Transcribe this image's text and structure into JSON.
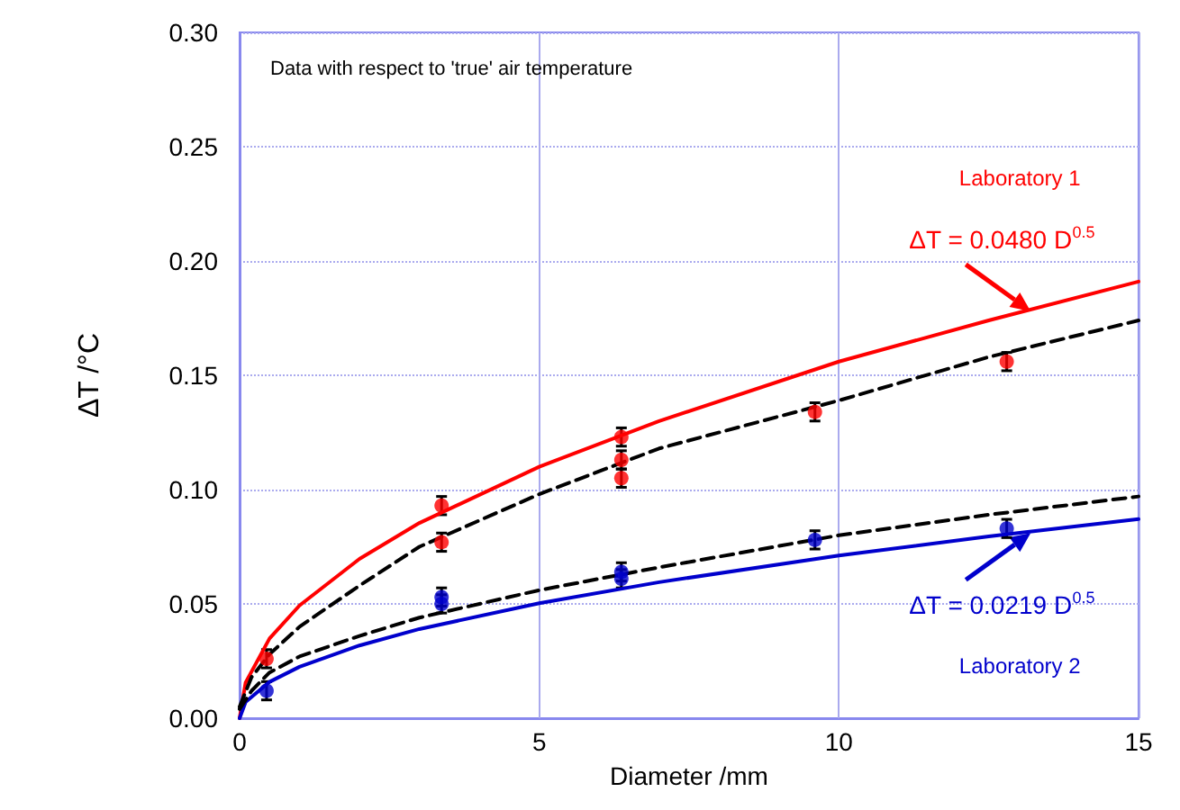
{
  "chart_data": {
    "type": "scatter",
    "title": "Data with respect to 'true' air temperature",
    "xlabel": "Diameter /mm",
    "ylabel": "ΔT /°C",
    "xlim": [
      0,
      15
    ],
    "xticks": [
      0,
      5,
      10,
      15
    ],
    "ylim": [
      0,
      0.3
    ],
    "yticks": [
      {
        "value": 0,
        "label": "0.00"
      },
      {
        "value": 0.05,
        "label": "0.05"
      },
      {
        "value": 0.1,
        "label": "0.10"
      },
      {
        "value": 0.15,
        "label": "0.15"
      },
      {
        "value": 0.2,
        "label": "0.20"
      },
      {
        "value": 0.25,
        "label": "0.25"
      },
      {
        "value": 0.3,
        "label": "0.30"
      }
    ],
    "grid": true,
    "marker": "circle",
    "series": [
      {
        "color": "#ff0000",
        "x": [
          0.45,
          3.37,
          3.37,
          6.37,
          6.37,
          6.37,
          9.6,
          12.8
        ],
        "values": [
          0.026,
          0.093,
          0.077,
          0.123,
          0.113,
          0.105,
          0.134,
          0.156
        ],
        "errors": [
          0.004,
          0.004,
          0.004,
          0.004,
          0.004,
          0.004,
          0.004,
          0.004
        ]
      },
      {
        "color": "#0000cc",
        "x": [
          0.45,
          3.37,
          3.37,
          6.37,
          6.37,
          9.6,
          12.8
        ],
        "values": [
          0.012,
          0.053,
          0.05,
          0.064,
          0.061,
          0.078,
          0.083
        ],
        "errors": [
          0.004,
          0.004,
          0.004,
          0.004,
          0.004,
          0.004,
          0.004
        ]
      },
      {
        "type": "line",
        "name": "Laboratory 1",
        "color": "#ff0000",
        "line_style": "solid",
        "marker": "none",
        "x": [
          0,
          0.1,
          0.5,
          1,
          2,
          3,
          5,
          7,
          10,
          12.5,
          15
        ],
        "values": [
          0,
          0.0156,
          0.0349,
          0.0493,
          0.0697,
          0.0854,
          0.11,
          0.13,
          0.156,
          0.174,
          0.191
        ]
      },
      {
        "type": "line",
        "name": "Laboratory 2",
        "color": "#0000cc",
        "line_style": "solid",
        "marker": "none",
        "x": [
          0,
          0.1,
          0.5,
          1,
          2,
          3,
          5,
          7,
          10,
          12.5,
          15
        ],
        "values": [
          0,
          0.0071,
          0.0159,
          0.0225,
          0.0318,
          0.039,
          0.0503,
          0.0595,
          0.0712,
          0.0795,
          0.0871
        ]
      },
      {
        "type": "line",
        "color": "#000000",
        "line_style": "dashed",
        "marker": "none",
        "x": [
          0,
          0.2,
          0.5,
          1,
          2,
          3,
          5,
          7,
          10,
          12.5,
          15
        ],
        "values": [
          0.005,
          0.018,
          0.028,
          0.04,
          0.058,
          0.075,
          0.098,
          0.118,
          0.139,
          0.158,
          0.174
        ]
      },
      {
        "type": "line",
        "color": "#000000",
        "line_style": "dashed",
        "marker": "none",
        "x": [
          0,
          0.2,
          0.5,
          1,
          2,
          3,
          5,
          7,
          10,
          12.5,
          15
        ],
        "values": [
          0.004,
          0.012,
          0.02,
          0.027,
          0.036,
          0.044,
          0.056,
          0.066,
          0.08,
          0.089,
          0.097
        ]
      }
    ],
    "annotations": [
      {
        "text": "ΔT = 0.0480 D$^{0.5}$",
        "x": 13.2,
        "y": 0.178
      },
      {
        "text": "ΔT = 0.0219 D$^{0.5}$",
        "x": 13.2,
        "y": 0.081
      }
    ]
  }
}
